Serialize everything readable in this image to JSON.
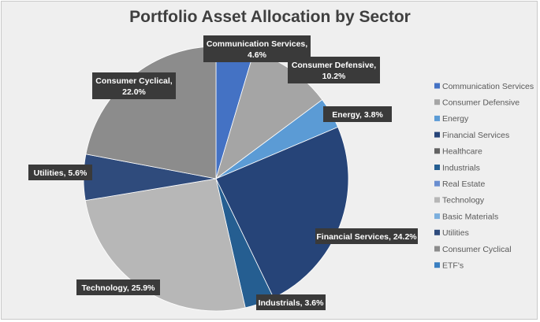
{
  "chart_data": {
    "type": "pie",
    "title": "Portfolio Asset Allocation by Sector",
    "legend_position": "right",
    "legend": [
      {
        "name": "Communication Services",
        "color": "#4472c4"
      },
      {
        "name": "Consumer Defensive",
        "color": "#a5a5a5"
      },
      {
        "name": "Energy",
        "color": "#5b9bd5"
      },
      {
        "name": "Financial Services",
        "color": "#264478"
      },
      {
        "name": "Healthcare",
        "color": "#636363"
      },
      {
        "name": "Industrials",
        "color": "#255e91"
      },
      {
        "name": "Real Estate",
        "color": "#698ed0"
      },
      {
        "name": "Technology",
        "color": "#b7b7b7"
      },
      {
        "name": "Basic Materials",
        "color": "#7cafdd"
      },
      {
        "name": "Utilities",
        "color": "#2f4b7c"
      },
      {
        "name": "Consumer Cyclical",
        "color": "#8c8c8c"
      },
      {
        "name": "ETF's",
        "color": "#3a7fc1"
      }
    ],
    "slices": [
      {
        "name": "Communication Services",
        "value": 4.6,
        "color": "#4472c4",
        "label_lines": [
          "Communication Services,",
          "4.6%"
        ]
      },
      {
        "name": "Consumer Defensive",
        "value": 10.2,
        "color": "#a5a5a5",
        "label_lines": [
          "Consumer Defensive,",
          "10.2%"
        ]
      },
      {
        "name": "Energy",
        "value": 3.8,
        "color": "#5b9bd5",
        "label_lines": [
          "Energy, 3.8%"
        ]
      },
      {
        "name": "Financial Services",
        "value": 24.2,
        "color": "#264478",
        "label_lines": [
          "Financial Services, 24.2%"
        ]
      },
      {
        "name": "Industrials",
        "value": 3.6,
        "color": "#255e91",
        "label_lines": [
          "Industrials, 3.6%"
        ]
      },
      {
        "name": "Technology",
        "value": 25.9,
        "color": "#b7b7b7",
        "label_lines": [
          "Technology, 25.9%"
        ]
      },
      {
        "name": "Utilities",
        "value": 5.6,
        "color": "#2f4b7c",
        "label_lines": [
          "Utilities, 5.6%"
        ]
      },
      {
        "name": "Consumer Cyclical",
        "value": 22.0,
        "color": "#8c8c8c",
        "label_lines": [
          "Consumer Cyclical,",
          "22.0%"
        ]
      }
    ]
  }
}
